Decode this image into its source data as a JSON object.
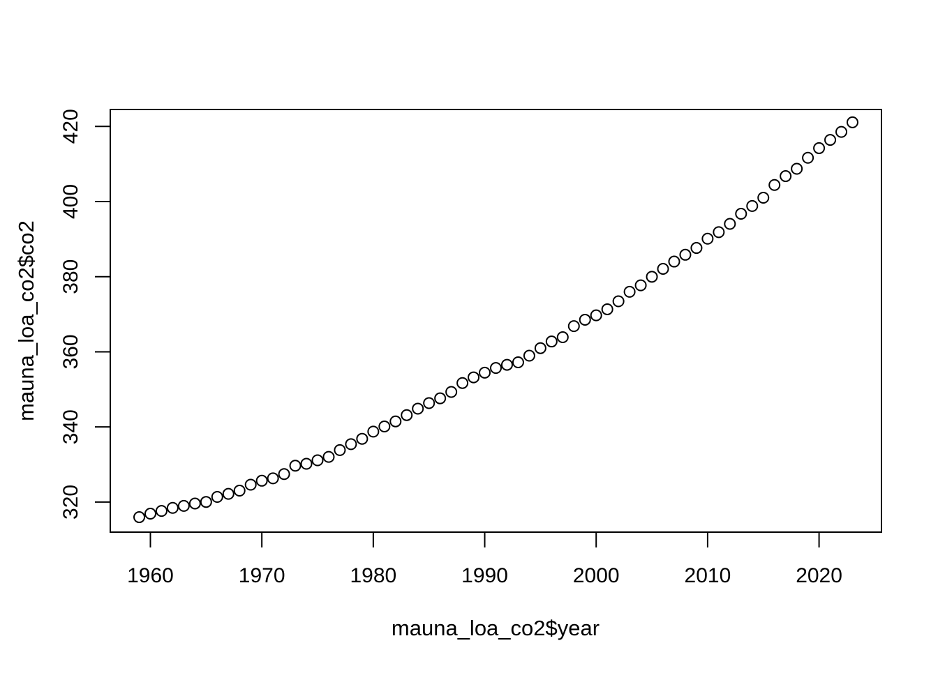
{
  "chart_data": {
    "type": "scatter",
    "title": "",
    "xlabel": "mauna_loa_co2$year",
    "ylabel": "mauna_loa_co2$co2",
    "xlim": [
      1956.4,
      2025.6
    ],
    "ylim": [
      312.0,
      424.5
    ],
    "xticks": [
      1960,
      1970,
      1980,
      1990,
      2000,
      2010,
      2020
    ],
    "yticks": [
      320,
      340,
      360,
      380,
      400,
      420
    ],
    "grid": false,
    "legend": "none",
    "marker": "open-circle",
    "series": [
      {
        "x": [
          1959,
          1960,
          1961,
          1962,
          1963,
          1964,
          1965,
          1966,
          1967,
          1968,
          1969,
          1970,
          1971,
          1972,
          1973,
          1974,
          1975,
          1976,
          1977,
          1978,
          1979,
          1980,
          1981,
          1982,
          1983,
          1984,
          1985,
          1986,
          1987,
          1988,
          1989,
          1990,
          1991,
          1992,
          1993,
          1994,
          1995,
          1996,
          1997,
          1998,
          1999,
          2000,
          2001,
          2002,
          2003,
          2004,
          2005,
          2006,
          2007,
          2008,
          2009,
          2010,
          2011,
          2012,
          2013,
          2014,
          2015,
          2016,
          2017,
          2018,
          2019,
          2020,
          2021,
          2022,
          2023
        ],
        "values": [
          315.98,
          316.91,
          317.64,
          318.45,
          318.99,
          319.62,
          320.04,
          321.37,
          322.18,
          323.05,
          324.62,
          325.68,
          326.32,
          327.46,
          329.68,
          330.19,
          331.12,
          332.03,
          333.84,
          335.41,
          336.84,
          338.76,
          340.12,
          341.48,
          343.15,
          344.87,
          346.35,
          347.61,
          349.31,
          351.69,
          353.2,
          354.45,
          355.7,
          356.54,
          357.21,
          358.96,
          360.97,
          362.74,
          363.88,
          366.84,
          368.54,
          369.71,
          371.32,
          373.45,
          375.98,
          377.7,
          379.98,
          382.09,
          384.02,
          385.83,
          387.64,
          390.1,
          391.85,
          394.06,
          396.74,
          398.81,
          401.01,
          404.41,
          406.76,
          408.72,
          411.65,
          414.21,
          416.41,
          418.53,
          421.08
        ]
      }
    ]
  }
}
